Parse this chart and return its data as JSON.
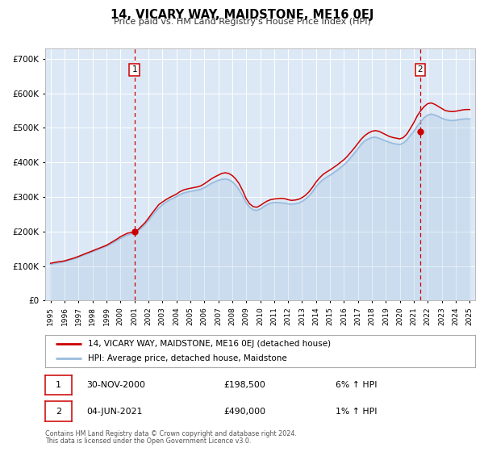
{
  "title": "14, VICARY WAY, MAIDSTONE, ME16 0EJ",
  "subtitle": "Price paid vs. HM Land Registry's House Price Index (HPI)",
  "background_color": "#ffffff",
  "plot_bg_color": "#dce8f5",
  "grid_color": "#ffffff",
  "red_line_color": "#cc0000",
  "blue_line_color": "#99bbdd",
  "annotation1": {
    "label": "1",
    "date_year": 2001.0,
    "value": 198500,
    "date_str": "30-NOV-2000",
    "price": "£198,500",
    "hpi": "6% ↑ HPI"
  },
  "annotation2": {
    "label": "2",
    "date_year": 2021.45,
    "value": 490000,
    "date_str": "04-JUN-2021",
    "price": "£490,000",
    "hpi": "1% ↑ HPI"
  },
  "ylabel_ticks": [
    0,
    100000,
    200000,
    300000,
    400000,
    500000,
    600000,
    700000
  ],
  "ylabel_labels": [
    "£0",
    "£100K",
    "£200K",
    "£300K",
    "£400K",
    "£500K",
    "£600K",
    "£700K"
  ],
  "xlim_start": 1994.6,
  "xlim_end": 2025.4,
  "ylim_min": 0,
  "ylim_max": 730000,
  "legend_line1": "14, VICARY WAY, MAIDSTONE, ME16 0EJ (detached house)",
  "legend_line2": "HPI: Average price, detached house, Maidstone",
  "footer1": "Contains HM Land Registry data © Crown copyright and database right 2024.",
  "footer2": "This data is licensed under the Open Government Licence v3.0.",
  "red_x": [
    1995.0,
    1995.25,
    1995.5,
    1995.75,
    1996.0,
    1996.25,
    1996.5,
    1996.75,
    1997.0,
    1997.25,
    1997.5,
    1997.75,
    1998.0,
    1998.25,
    1998.5,
    1998.75,
    1999.0,
    1999.25,
    1999.5,
    1999.75,
    2000.0,
    2000.25,
    2000.5,
    2000.75,
    2001.0,
    2001.25,
    2001.5,
    2001.75,
    2002.0,
    2002.25,
    2002.5,
    2002.75,
    2003.0,
    2003.25,
    2003.5,
    2003.75,
    2004.0,
    2004.25,
    2004.5,
    2004.75,
    2005.0,
    2005.25,
    2005.5,
    2005.75,
    2006.0,
    2006.25,
    2006.5,
    2006.75,
    2007.0,
    2007.25,
    2007.5,
    2007.75,
    2008.0,
    2008.25,
    2008.5,
    2008.75,
    2009.0,
    2009.25,
    2009.5,
    2009.75,
    2010.0,
    2010.25,
    2010.5,
    2010.75,
    2011.0,
    2011.25,
    2011.5,
    2011.75,
    2012.0,
    2012.25,
    2012.5,
    2012.75,
    2013.0,
    2013.25,
    2013.5,
    2013.75,
    2014.0,
    2014.25,
    2014.5,
    2014.75,
    2015.0,
    2015.25,
    2015.5,
    2015.75,
    2016.0,
    2016.25,
    2016.5,
    2016.75,
    2017.0,
    2017.25,
    2017.5,
    2017.75,
    2018.0,
    2018.25,
    2018.5,
    2018.75,
    2019.0,
    2019.25,
    2019.5,
    2019.75,
    2020.0,
    2020.25,
    2020.5,
    2020.75,
    2021.0,
    2021.25,
    2021.5,
    2021.75,
    2022.0,
    2022.25,
    2022.5,
    2022.75,
    2023.0,
    2023.25,
    2023.5,
    2023.75,
    2024.0,
    2024.25,
    2024.5,
    2024.75,
    2025.0
  ],
  "red_y": [
    108000,
    110000,
    112000,
    113000,
    115000,
    118000,
    121000,
    124000,
    128000,
    132000,
    136000,
    140000,
    144000,
    148000,
    152000,
    156000,
    160000,
    166000,
    172000,
    178000,
    185000,
    190000,
    195000,
    197000,
    198500,
    205000,
    215000,
    225000,
    238000,
    252000,
    265000,
    278000,
    285000,
    292000,
    298000,
    303000,
    308000,
    315000,
    320000,
    323000,
    325000,
    327000,
    329000,
    332000,
    338000,
    345000,
    352000,
    358000,
    363000,
    368000,
    370000,
    368000,
    362000,
    352000,
    338000,
    318000,
    295000,
    280000,
    272000,
    270000,
    275000,
    282000,
    288000,
    292000,
    294000,
    295000,
    296000,
    295000,
    292000,
    290000,
    291000,
    293000,
    298000,
    305000,
    315000,
    328000,
    343000,
    355000,
    365000,
    372000,
    378000,
    385000,
    392000,
    400000,
    408000,
    418000,
    430000,
    442000,
    455000,
    468000,
    478000,
    485000,
    490000,
    492000,
    490000,
    485000,
    480000,
    475000,
    472000,
    470000,
    468000,
    472000,
    482000,
    498000,
    515000,
    535000,
    550000,
    562000,
    570000,
    572000,
    568000,
    562000,
    556000,
    550000,
    548000,
    547000,
    548000,
    550000,
    552000,
    553000,
    553000
  ],
  "blue_x": [
    1995.0,
    1995.25,
    1995.5,
    1995.75,
    1996.0,
    1996.25,
    1996.5,
    1996.75,
    1997.0,
    1997.25,
    1997.5,
    1997.75,
    1998.0,
    1998.25,
    1998.5,
    1998.75,
    1999.0,
    1999.25,
    1999.5,
    1999.75,
    2000.0,
    2000.25,
    2000.5,
    2000.75,
    2001.0,
    2001.25,
    2001.5,
    2001.75,
    2002.0,
    2002.25,
    2002.5,
    2002.75,
    2003.0,
    2003.25,
    2003.5,
    2003.75,
    2004.0,
    2004.25,
    2004.5,
    2004.75,
    2005.0,
    2005.25,
    2005.5,
    2005.75,
    2006.0,
    2006.25,
    2006.5,
    2006.75,
    2007.0,
    2007.25,
    2007.5,
    2007.75,
    2008.0,
    2008.25,
    2008.5,
    2008.75,
    2009.0,
    2009.25,
    2009.5,
    2009.75,
    2010.0,
    2010.25,
    2010.5,
    2010.75,
    2011.0,
    2011.25,
    2011.5,
    2011.75,
    2012.0,
    2012.25,
    2012.5,
    2012.75,
    2013.0,
    2013.25,
    2013.5,
    2013.75,
    2014.0,
    2014.25,
    2014.5,
    2014.75,
    2015.0,
    2015.25,
    2015.5,
    2015.75,
    2016.0,
    2016.25,
    2016.5,
    2016.75,
    2017.0,
    2017.25,
    2017.5,
    2017.75,
    2018.0,
    2018.25,
    2018.5,
    2018.75,
    2019.0,
    2019.25,
    2019.5,
    2019.75,
    2020.0,
    2020.25,
    2020.5,
    2020.75,
    2021.0,
    2021.25,
    2021.5,
    2021.75,
    2022.0,
    2022.25,
    2022.5,
    2022.75,
    2023.0,
    2023.25,
    2023.5,
    2023.75,
    2024.0,
    2024.25,
    2024.5,
    2024.75,
    2025.0
  ],
  "blue_y": [
    105000,
    107000,
    109000,
    111000,
    113000,
    116000,
    119000,
    122000,
    126000,
    130000,
    134000,
    138000,
    142000,
    146000,
    150000,
    154000,
    158000,
    163000,
    168000,
    174000,
    180000,
    185000,
    190000,
    193000,
    196000,
    202000,
    210000,
    220000,
    232000,
    245000,
    257000,
    268000,
    277000,
    285000,
    291000,
    296000,
    301000,
    307000,
    311000,
    314000,
    316000,
    318000,
    320000,
    322000,
    327000,
    333000,
    339000,
    344000,
    348000,
    351000,
    352000,
    350000,
    344000,
    334000,
    320000,
    302000,
    283000,
    270000,
    263000,
    261000,
    265000,
    272000,
    278000,
    282000,
    284000,
    284000,
    283000,
    282000,
    280000,
    279000,
    280000,
    282000,
    287000,
    294000,
    303000,
    315000,
    330000,
    341000,
    350000,
    357000,
    363000,
    370000,
    377000,
    385000,
    393000,
    403000,
    415000,
    427000,
    440000,
    453000,
    463000,
    468000,
    472000,
    473000,
    470000,
    466000,
    462000,
    458000,
    455000,
    453000,
    452000,
    456000,
    465000,
    478000,
    490000,
    505000,
    518000,
    530000,
    537000,
    540000,
    537000,
    533000,
    528000,
    524000,
    522000,
    521000,
    522000,
    524000,
    525000,
    526000,
    526000
  ]
}
